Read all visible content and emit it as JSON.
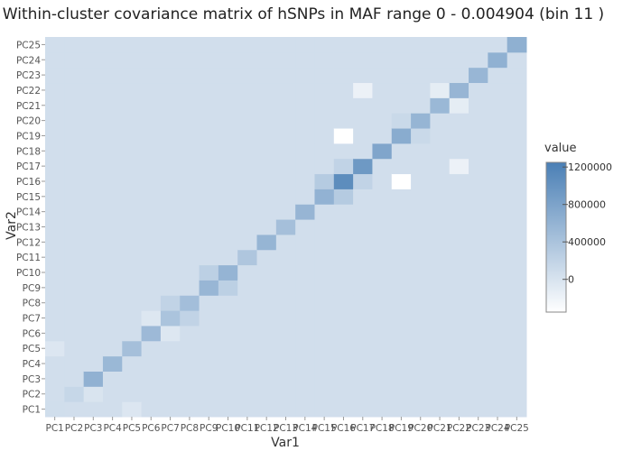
{
  "chart_data": {
    "type": "heatmap",
    "title": "Within-cluster covariance matrix of hSNPs in MAF range 0 - 0.004904 (bin 11 )",
    "xlabel": "Var1",
    "ylabel": "Var2",
    "labels": [
      "PC1",
      "PC2",
      "PC3",
      "PC4",
      "PC5",
      "PC6",
      "PC7",
      "PC8",
      "PC9",
      "PC10",
      "PC11",
      "PC12",
      "PC13",
      "PC14",
      "PC15",
      "PC16",
      "PC17",
      "PC18",
      "PC19",
      "PC20",
      "PC21",
      "PC22",
      "PC23",
      "PC24",
      "PC25"
    ],
    "diagonal": [
      65000,
      150000,
      620000,
      540000,
      450000,
      520000,
      390000,
      460000,
      560000,
      590000,
      360000,
      580000,
      450000,
      570000,
      610000,
      1080000,
      930000,
      770000,
      690000,
      580000,
      540000,
      570000,
      560000,
      630000,
      640000
    ],
    "off_diagonal_default": 60000,
    "off_diagonal_overrides": [
      {
        "x": "PC1",
        "y": "PC5",
        "value": -40000
      },
      {
        "x": "PC3",
        "y": "PC2",
        "value": -10000
      },
      {
        "x": "PC16",
        "y": "PC15",
        "value": 300000
      },
      {
        "x": "PC15",
        "y": "PC16",
        "value": 300000
      },
      {
        "x": "PC17",
        "y": "PC16",
        "value": 200000
      },
      {
        "x": "PC16",
        "y": "PC17",
        "value": 200000
      },
      {
        "x": "PC19",
        "y": "PC16",
        "value": -350000
      },
      {
        "x": "PC16",
        "y": "PC19",
        "value": -350000
      },
      {
        "x": "PC22",
        "y": "PC17",
        "value": -180000
      },
      {
        "x": "PC17",
        "y": "PC22",
        "value": -180000
      },
      {
        "x": "PC9",
        "y": "PC10",
        "value": 240000
      },
      {
        "x": "PC10",
        "y": "PC9",
        "value": 240000
      },
      {
        "x": "PC7",
        "y": "PC8",
        "value": 200000
      },
      {
        "x": "PC8",
        "y": "PC7",
        "value": 200000
      },
      {
        "x": "PC20",
        "y": "PC19",
        "value": 130000
      },
      {
        "x": "PC19",
        "y": "PC20",
        "value": 130000
      },
      {
        "x": "PC6",
        "y": "PC7",
        "value": -50000
      },
      {
        "x": "PC7",
        "y": "PC6",
        "value": -50000
      },
      {
        "x": "PC21",
        "y": "PC22",
        "value": -120000
      },
      {
        "x": "PC22",
        "y": "PC21",
        "value": -120000
      },
      {
        "x": "PC5",
        "y": "PC1",
        "value": -40000
      }
    ],
    "colorscale": {
      "min_color": "#ffffff",
      "max_color": "#4a7fb5",
      "min": -350000,
      "max": 1250000
    },
    "legend": {
      "title": "value",
      "ticks": [
        0,
        400000,
        800000,
        1200000
      ],
      "tick_labels": [
        "0",
        "400000",
        "800000",
        "1200000"
      ]
    }
  }
}
